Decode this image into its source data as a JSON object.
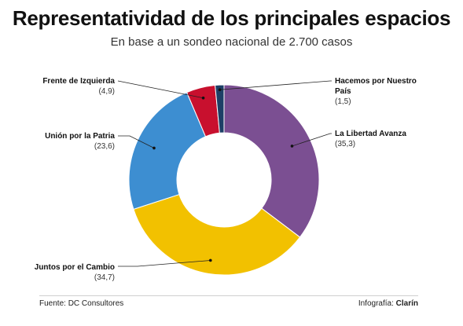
{
  "header": {
    "title": "Representatividad de los principales espacios",
    "subtitle": "En base a un sondeo nacional de 2.700 casos"
  },
  "footer": {
    "source": "Fuente: DC Consultores",
    "credit_prefix": "Infografía: ",
    "credit_brand": "Clarín"
  },
  "chart_data": {
    "type": "pie",
    "donut": true,
    "title": "Representatividad de los principales espacios",
    "subtitle": "En base a un sondeo nacional de 2.700 casos",
    "legend": "none",
    "slices": [
      {
        "name_lines": [
          "La Libertad Avanza"
        ],
        "value": 35.3,
        "value_label": "(35,3)",
        "color": "#7b4f92"
      },
      {
        "name_lines": [
          "Juntos por el Cambio"
        ],
        "value": 34.7,
        "value_label": "(34,7)",
        "color": "#f2c100"
      },
      {
        "name_lines": [
          "Unión por la Patria"
        ],
        "value": 23.6,
        "value_label": "(23,6)",
        "color": "#3d8ed1"
      },
      {
        "name_lines": [
          "Frente de Izquierda"
        ],
        "value": 4.9,
        "value_label": "(4,9)",
        "color": "#c8102e"
      },
      {
        "name_lines": [
          "Hacemos por Nuestro",
          "País"
        ],
        "value": 1.5,
        "value_label": "(1,5)",
        "color": "#1d3f66"
      }
    ]
  }
}
